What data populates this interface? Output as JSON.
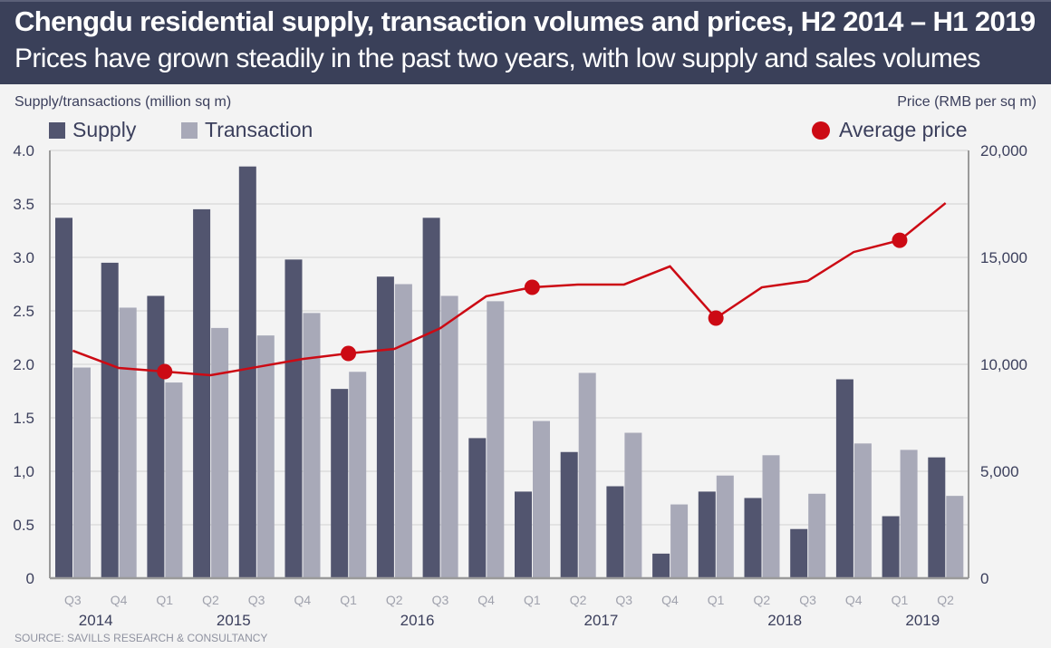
{
  "header": {
    "title": "Chengdu residential supply, transaction volumes and prices, H2 2014 – H1 2019",
    "subtitle": "Prices have grown steadily in the past two years, with low supply and sales volumes"
  },
  "source": "SOURCE: SAVILLS RESEARCH & CONSULTANCY",
  "colors": {
    "supply": "#52556f",
    "transaction": "#a8a9b8",
    "price": "#cc0a14",
    "header_bg": "#3a4059",
    "grid": "#e2e2e2"
  },
  "chart_data": {
    "type": "bar",
    "title": "Chengdu residential supply, transaction volumes and prices, H2 2014 – H1 2019",
    "subtitle": "Prices have grown steadily in the past two years, with low supply and sales volumes",
    "ylabel": "Supply/transactions (million sq m)",
    "y2label": "Price (RMB per sq m)",
    "ylim": [
      0,
      4.0
    ],
    "y2lim": [
      0,
      20000
    ],
    "yticks": [
      "0",
      "0.5",
      "1,0",
      "1.5",
      "2.0",
      "2.5",
      "3.0",
      "3.5",
      "4.0"
    ],
    "y2ticks": [
      "0",
      "5,000",
      "10,000",
      "15,000",
      "20,000"
    ],
    "grid": true,
    "categories": [
      "Q3",
      "Q4",
      "Q1",
      "Q2",
      "Q3",
      "Q4",
      "Q1",
      "Q2",
      "Q3",
      "Q4",
      "Q1",
      "Q2",
      "Q3",
      "Q4",
      "Q1",
      "Q2",
      "Q3",
      "Q4",
      "Q1",
      "Q2"
    ],
    "years": [
      {
        "label": "2014",
        "start": 0,
        "end": 1
      },
      {
        "label": "2015",
        "start": 2,
        "end": 5
      },
      {
        "label": "2016",
        "start": 6,
        "end": 9
      },
      {
        "label": "2017",
        "start": 10,
        "end": 13
      },
      {
        "label": "2018",
        "start": 14,
        "end": 17
      },
      {
        "label": "2019",
        "start": 18,
        "end": 19
      }
    ],
    "legend": [
      {
        "name": "Supply",
        "position": "top-left"
      },
      {
        "name": "Transaction",
        "position": "top-left"
      },
      {
        "name": "Average price",
        "position": "top-right"
      }
    ],
    "series": [
      {
        "name": "Supply",
        "type": "bar",
        "axis": "left",
        "values": [
          3.37,
          2.95,
          2.64,
          3.45,
          3.85,
          2.98,
          1.77,
          2.82,
          3.37,
          1.31,
          0.81,
          1.18,
          0.86,
          0.23,
          0.81,
          0.75,
          0.46,
          1.86,
          0.58,
          1.13
        ]
      },
      {
        "name": "Transaction",
        "type": "bar",
        "axis": "left",
        "values": [
          1.97,
          2.53,
          1.83,
          2.34,
          2.27,
          2.48,
          1.93,
          2.75,
          2.64,
          2.59,
          1.47,
          1.92,
          1.36,
          0.69,
          0.96,
          1.15,
          0.79,
          1.26,
          1.2,
          0.77
        ]
      },
      {
        "name": "Average price",
        "type": "line",
        "axis": "right",
        "values": [
          10640,
          9830,
          9660,
          9490,
          9870,
          10250,
          10510,
          10720,
          11690,
          13180,
          13600,
          13730,
          13730,
          14580,
          12160,
          13600,
          13900,
          15250,
          15800,
          17540
        ],
        "markers_at": [
          2,
          6,
          10,
          14,
          18
        ]
      }
    ]
  }
}
